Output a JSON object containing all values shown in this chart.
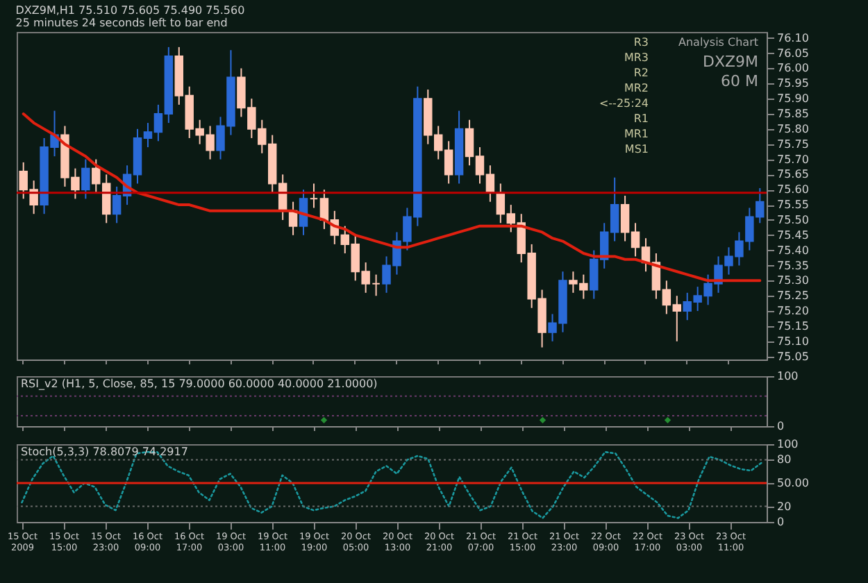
{
  "chart_data": [
    {
      "type": "candlestick",
      "title": "DXZ9M,H1 75.510 75.605 75.490 75.560",
      "subtitle": "25 minutes 24 seconds left to bar end",
      "categories": [
        "15 Oct 2009",
        null,
        null,
        null,
        "15 Oct 15:00",
        null,
        null,
        null,
        "15 Oct 23:00",
        null,
        null,
        null,
        "16 Oct 09:00",
        null,
        null,
        null,
        "16 Oct 17:00",
        null,
        null,
        null,
        "19 Oct 03:00",
        null,
        null,
        null,
        "19 Oct 11:00",
        null,
        null,
        null,
        "19 Oct 19:00",
        null,
        null,
        null,
        "20 Oct 05:00",
        null,
        null,
        null,
        "20 Oct 13:00",
        null,
        null,
        null,
        "20 Oct 21:00",
        null,
        null,
        null,
        "21 Oct 07:00",
        null,
        null,
        null,
        "21 Oct 15:00",
        null,
        null,
        null,
        "21 Oct 23:00",
        null,
        null,
        null,
        "22 Oct 09:00",
        null,
        null,
        null,
        "22 Oct 17:00",
        null,
        null,
        null,
        "23 Oct 03:00",
        null,
        null,
        null,
        "23 Oct 11:00",
        null,
        null,
        null
      ],
      "ohlc": [
        [
          75.66,
          75.69,
          75.57,
          75.6
        ],
        [
          75.6,
          75.63,
          75.52,
          75.55
        ],
        [
          75.55,
          75.77,
          75.52,
          75.74
        ],
        [
          75.74,
          75.86,
          75.71,
          75.78
        ],
        [
          75.78,
          75.81,
          75.61,
          75.64
        ],
        [
          75.64,
          75.67,
          75.57,
          75.6
        ],
        [
          75.6,
          75.7,
          75.57,
          75.67
        ],
        [
          75.67,
          75.7,
          75.59,
          75.62
        ],
        [
          75.62,
          75.65,
          75.49,
          75.52
        ],
        [
          75.52,
          75.61,
          75.49,
          75.58
        ],
        [
          75.58,
          75.68,
          75.55,
          75.65
        ],
        [
          75.65,
          75.8,
          75.62,
          75.77
        ],
        [
          75.77,
          75.82,
          75.74,
          75.79
        ],
        [
          75.79,
          75.88,
          75.76,
          75.85
        ],
        [
          75.85,
          76.07,
          75.82,
          76.04
        ],
        [
          76.04,
          76.07,
          75.88,
          75.91
        ],
        [
          75.91,
          75.94,
          75.77,
          75.8
        ],
        [
          75.8,
          75.83,
          75.75,
          75.78
        ],
        [
          75.78,
          75.81,
          75.7,
          75.73
        ],
        [
          75.73,
          75.84,
          75.7,
          75.81
        ],
        [
          75.81,
          76.06,
          75.78,
          75.97
        ],
        [
          75.97,
          76.0,
          75.84,
          75.87
        ],
        [
          75.87,
          75.9,
          75.77,
          75.8
        ],
        [
          75.8,
          75.83,
          75.72,
          75.75
        ],
        [
          75.75,
          75.78,
          75.59,
          75.62
        ],
        [
          75.62,
          75.65,
          75.5,
          75.53
        ],
        [
          75.53,
          75.56,
          75.45,
          75.48
        ],
        [
          75.48,
          75.6,
          75.45,
          75.57
        ],
        [
          75.57,
          75.62,
          75.54,
          75.57
        ],
        [
          75.57,
          75.6,
          75.47,
          75.5
        ],
        [
          75.5,
          75.53,
          75.42,
          75.45
        ],
        [
          75.45,
          75.48,
          75.39,
          75.42
        ],
        [
          75.42,
          75.45,
          75.3,
          75.33
        ],
        [
          75.33,
          75.36,
          75.26,
          75.29
        ],
        [
          75.29,
          75.32,
          75.25,
          75.29
        ],
        [
          75.29,
          75.38,
          75.26,
          75.35
        ],
        [
          75.35,
          75.46,
          75.32,
          75.43
        ],
        [
          75.43,
          75.54,
          75.4,
          75.51
        ],
        [
          75.51,
          75.94,
          75.48,
          75.9
        ],
        [
          75.9,
          75.93,
          75.75,
          75.78
        ],
        [
          75.78,
          75.81,
          75.7,
          75.73
        ],
        [
          75.73,
          75.76,
          75.62,
          75.65
        ],
        [
          75.65,
          75.86,
          75.62,
          75.8
        ],
        [
          75.8,
          75.83,
          75.68,
          75.71
        ],
        [
          75.71,
          75.74,
          75.62,
          75.65
        ],
        [
          75.65,
          75.68,
          75.56,
          75.59
        ],
        [
          75.59,
          75.62,
          75.49,
          75.52
        ],
        [
          75.52,
          75.55,
          75.46,
          75.49
        ],
        [
          75.49,
          75.52,
          75.36,
          75.39
        ],
        [
          75.39,
          75.42,
          75.21,
          75.24
        ],
        [
          75.24,
          75.27,
          75.08,
          75.13
        ],
        [
          75.13,
          75.19,
          75.1,
          75.16
        ],
        [
          75.16,
          75.33,
          75.13,
          75.3
        ],
        [
          75.3,
          75.33,
          75.26,
          75.29
        ],
        [
          75.29,
          75.32,
          75.24,
          75.27
        ],
        [
          75.27,
          75.4,
          75.24,
          75.37
        ],
        [
          75.37,
          75.49,
          75.34,
          75.46
        ],
        [
          75.46,
          75.64,
          75.43,
          75.55
        ],
        [
          75.55,
          75.58,
          75.43,
          75.46
        ],
        [
          75.46,
          75.49,
          75.38,
          75.41
        ],
        [
          75.41,
          75.44,
          75.33,
          75.36
        ],
        [
          75.36,
          75.39,
          75.24,
          75.27
        ],
        [
          75.27,
          75.3,
          75.19,
          75.22
        ],
        [
          75.22,
          75.25,
          75.1,
          75.2
        ],
        [
          75.2,
          75.26,
          75.17,
          75.23
        ],
        [
          75.23,
          75.28,
          75.2,
          75.25
        ],
        [
          75.25,
          75.32,
          75.22,
          75.29
        ],
        [
          75.29,
          75.38,
          75.26,
          75.35
        ],
        [
          75.35,
          75.41,
          75.32,
          75.38
        ],
        [
          75.38,
          75.46,
          75.35,
          75.43
        ],
        [
          75.43,
          75.54,
          75.4,
          75.51
        ],
        [
          75.51,
          75.605,
          75.49,
          75.56
        ]
      ],
      "colors": [
        "#ffc8b4",
        "#ffc8b4",
        "#2a6ad8",
        "#2a6ad8",
        "#ffc8b4",
        "#ffc8b4",
        "#2a6ad8",
        "#ffc8b4",
        "#ffc8b4",
        "#2a6ad8",
        "#2a6ad8",
        "#2a6ad8",
        "#2a6ad8",
        "#2a6ad8",
        "#2a6ad8",
        "#ffc8b4",
        "#ffc8b4",
        "#ffc8b4",
        "#ffc8b4",
        "#2a6ad8",
        "#2a6ad8",
        "#ffc8b4",
        "#ffc8b4",
        "#ffc8b4",
        "#ffc8b4",
        "#ffc8b4",
        "#ffc8b4",
        "#2a6ad8",
        "#ffc8b4",
        "#ffc8b4",
        "#ffc8b4",
        "#ffc8b4",
        "#ffc8b4",
        "#ffc8b4",
        "#ffc8b4",
        "#2a6ad8",
        "#2a6ad8",
        "#2a6ad8",
        "#2a6ad8",
        "#ffc8b4",
        "#ffc8b4",
        "#ffc8b4",
        "#2a6ad8",
        "#ffc8b4",
        "#ffc8b4",
        "#ffc8b4",
        "#ffc8b4",
        "#ffc8b4",
        "#ffc8b4",
        "#ffc8b4",
        "#ffc8b4",
        "#2a6ad8",
        "#2a6ad8",
        "#ffc8b4",
        "#ffc8b4",
        "#2a6ad8",
        "#2a6ad8",
        "#2a6ad8",
        "#ffc8b4",
        "#ffc8b4",
        "#ffc8b4",
        "#ffc8b4",
        "#ffc8b4",
        "#ffc8b4",
        "#2a6ad8",
        "#2a6ad8",
        "#2a6ad8",
        "#2a6ad8",
        "#2a6ad8",
        "#2a6ad8",
        "#2a6ad8",
        "#2a6ad8"
      ],
      "series": [
        {
          "type": "line",
          "color": "#e02010",
          "values": [
            75.85,
            75.82,
            75.8,
            75.78,
            75.75,
            75.73,
            75.71,
            75.68,
            75.66,
            75.64,
            75.61,
            75.59,
            75.58,
            75.57,
            75.56,
            75.55,
            75.55,
            75.54,
            75.53,
            75.53,
            75.53,
            75.53,
            75.53,
            75.53,
            75.53,
            75.53,
            75.53,
            75.52,
            75.51,
            75.5,
            75.48,
            75.47,
            75.45,
            75.44,
            75.43,
            75.42,
            75.41,
            75.41,
            75.42,
            75.43,
            75.44,
            75.45,
            75.46,
            75.47,
            75.48,
            75.48,
            75.48,
            75.48,
            75.48,
            75.47,
            75.46,
            75.44,
            75.43,
            75.41,
            75.39,
            75.38,
            75.38,
            75.38,
            75.37,
            75.37,
            75.36,
            75.35,
            75.34,
            75.33,
            75.32,
            75.31,
            75.3,
            75.3,
            75.3,
            75.3,
            75.3,
            75.3
          ]
        }
      ],
      "ylim": [
        75.04,
        76.12
      ],
      "yticks": [
        75.05,
        {
          "value": 75.1,
          "label": "75.10"
        },
        75.15,
        {
          "value": 75.2,
          "label": "75.20"
        },
        75.25,
        {
          "value": 75.3,
          "label": "75.30"
        },
        75.35,
        {
          "value": 75.4,
          "label": "75.40"
        },
        75.45,
        {
          "value": 75.5,
          "label": "75.50"
        },
        75.55,
        {
          "value": 75.6,
          "label": "75.60"
        },
        75.65,
        {
          "value": 75.7,
          "label": "75.70"
        },
        75.75,
        {
          "value": 75.8,
          "label": "75.80"
        },
        75.85,
        {
          "value": 75.9,
          "label": "75.90"
        },
        75.95,
        {
          "value": 76,
          "label": "76.00"
        },
        76.05,
        {
          "value": 76.1,
          "label": "76.10"
        }
      ],
      "ref_lines": [
        {
          "axis": "y",
          "value": 75.59,
          "color": "#c00000"
        }
      ],
      "annotations": [
        "Analysis Chart",
        "DXZ9M",
        "60 M",
        "R3",
        "MR3",
        "R2",
        "MR2",
        "<--25:24",
        "R1",
        "MR1",
        "MS1"
      ],
      "tick_labels": "y"
    },
    {
      "type": "scatter",
      "title": "RSI_v2 (H1, 5, Close, 85, 15 79.0000 60.0000 40.0000 21.0000)",
      "categories": [
        "15 Oct 2009",
        null,
        null,
        null,
        "15 Oct 15:00",
        null,
        null,
        null,
        "15 Oct 23:00",
        null,
        null,
        null,
        "16 Oct 09:00",
        null,
        null,
        null,
        "16 Oct 17:00",
        null,
        null,
        null,
        "19 Oct 03:00",
        null,
        null,
        null,
        "19 Oct 11:00",
        null,
        null,
        null,
        "19 Oct 19:00",
        null,
        null,
        null,
        "20 Oct 05:00",
        null,
        null,
        null,
        "20 Oct 13:00",
        null,
        null,
        null,
        "20 Oct 21:00",
        null,
        null,
        null,
        "21 Oct 07:00",
        null,
        null,
        null,
        "21 Oct 15:00",
        null,
        null,
        null,
        "21 Oct 23:00",
        null,
        null,
        null,
        "22 Oct 09:00",
        null,
        null,
        null,
        "22 Oct 17:00",
        null,
        null,
        null,
        "23 Oct 03:00",
        null,
        null,
        null,
        "23 Oct 11:00",
        null,
        null,
        null
      ],
      "series": [
        {
          "color": "#30c040",
          "values": [
            null,
            null,
            null,
            null,
            null,
            null,
            null,
            null,
            null,
            null,
            null,
            null,
            null,
            null,
            null,
            null,
            null,
            null,
            null,
            null,
            null,
            null,
            null,
            null,
            null,
            null,
            null,
            null,
            null,
            12,
            null,
            null,
            null,
            null,
            null,
            null,
            null,
            null,
            null,
            null,
            null,
            null,
            null,
            null,
            null,
            null,
            null,
            null,
            null,
            null,
            12,
            null,
            null,
            null,
            null,
            null,
            null,
            null,
            null,
            null,
            null,
            null,
            12,
            null,
            null,
            null,
            null,
            null,
            null,
            null,
            null,
            null
          ]
        }
      ],
      "marker": "diamond",
      "ylim": [
        0,
        100
      ],
      "yticks": [
        0,
        100
      ],
      "ref_lines": [
        {
          "axis": "y",
          "value": 60,
          "color": "#6a3a6a",
          "line_style": "dotted"
        },
        {
          "axis": "y",
          "value": 21,
          "color": "#6a3a6a",
          "line_style": "dotted"
        }
      ],
      "tick_labels": "y"
    },
    {
      "type": "line",
      "title": "Stoch(5,3,3) 78.8079 74.2917",
      "categories": [
        "15 Oct 2009",
        null,
        null,
        null,
        "15 Oct 15:00",
        null,
        null,
        null,
        "15 Oct 23:00",
        null,
        null,
        null,
        "16 Oct 09:00",
        null,
        null,
        null,
        "16 Oct 17:00",
        null,
        null,
        null,
        "19 Oct 03:00",
        null,
        null,
        null,
        "19 Oct 11:00",
        null,
        null,
        null,
        "19 Oct 19:00",
        null,
        null,
        null,
        "20 Oct 05:00",
        null,
        null,
        null,
        "20 Oct 13:00",
        null,
        null,
        null,
        "20 Oct 21:00",
        null,
        null,
        null,
        "21 Oct 07:00",
        null,
        null,
        null,
        "21 Oct 15:00",
        null,
        null,
        null,
        "21 Oct 23:00",
        null,
        null,
        null,
        "22 Oct 09:00",
        null,
        null,
        null,
        "22 Oct 17:00",
        null,
        null,
        null,
        "23 Oct 03:00",
        null,
        null,
        null,
        "23 Oct 11:00",
        null,
        null,
        null
      ],
      "series": [
        {
          "color": "#1a9aa0",
          "values": [
            25,
            55,
            75,
            85,
            60,
            38,
            50,
            45,
            22,
            15,
            50,
            88,
            90,
            90,
            72,
            65,
            60,
            38,
            28,
            55,
            62,
            45,
            18,
            12,
            20,
            60,
            50,
            20,
            15,
            18,
            20,
            28,
            33,
            40,
            65,
            72,
            62,
            80,
            85,
            81,
            45,
            20,
            58,
            35,
            15,
            20,
            52,
            70,
            40,
            14,
            5,
            20,
            45,
            65,
            57,
            72,
            90,
            88,
            68,
            45,
            35,
            25,
            8,
            5,
            15,
            55,
            84,
            80,
            73,
            68,
            66,
            76
          ]
        }
      ],
      "line_style": "dotted",
      "ylim": [
        0,
        100
      ],
      "yticks": [
        0,
        20,
        {
          "value": 50,
          "label": "50.00"
        },
        80,
        100
      ],
      "ref_lines": [
        {
          "axis": "y",
          "value": 50,
          "color": "#e02010"
        },
        {
          "axis": "y",
          "value": 80,
          "color": "#6a6a6a",
          "line_style": "dotted"
        },
        {
          "axis": "y",
          "value": 20,
          "color": "#6a6a6a",
          "line_style": "dotted"
        }
      ]
    }
  ]
}
